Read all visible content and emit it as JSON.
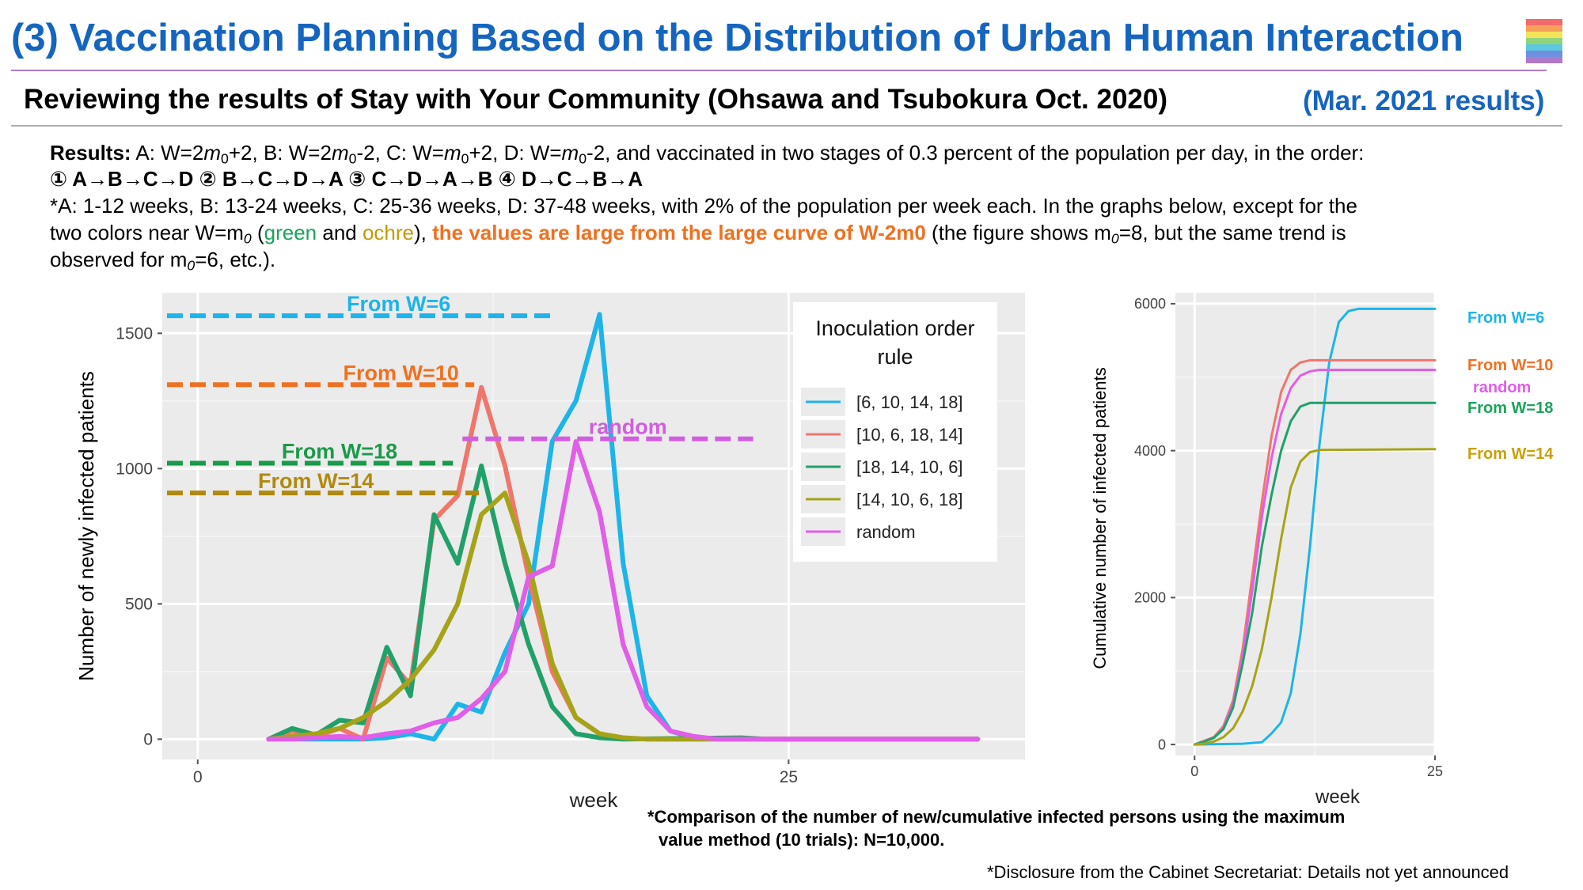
{
  "header": {
    "title": "(3) Vaccination Planning Based on the Distribution of Urban Human Interaction",
    "subtitle": "Reviewing the results of Stay with Your Community (Ohsawa and Tsubokura Oct. 2020)",
    "date": "(Mar. 2021 results)",
    "rainbow_colors": [
      "#f26b6b",
      "#f5a05a",
      "#f2e35a",
      "#8fd47a",
      "#5ec8e0",
      "#6f8fe0",
      "#b07acb"
    ]
  },
  "text": {
    "results_label": "Results:",
    "results_body_1": " A: W=2",
    "results_body_2": "+2, B: W=2",
    "results_body_3": "-2, C: W=",
    "results_body_4": "+2, D: W=",
    "results_body_5": "-2, and vaccinated in two stages of 0.3 percent of the population per day, in the order:",
    "m": "m",
    "zero": "0",
    "orders": "① A→B→C→D  ② B→C→D→A  ③ C→D→A→B  ④ D→C→B→A",
    "schedule_line": "*A: 1-12 weeks, B: 13-24 weeks, C: 25-36 weeks, D: 37-48 weeks, with 2% of the population per week each. In the graphs below, except for the",
    "line4_a": "two colors near W=m",
    "line4_b": " (",
    "green_word": "green",
    "and_word": " and ",
    "ochre_word": "ochre",
    "line4_c": "), ",
    "highlight": "the values are large from the large curve of W-2m0",
    "line4_d": " (the figure shows m",
    "line4_e": "=8, but the same trend is",
    "line5_a": "observed for m",
    "line5_b": "=6, etc.).",
    "footnote_1": "*Comparison of the number of new/cumulative infected persons using the maximum",
    "footnote_2": "value method (10 trials): N=10,000.",
    "footnote_3": "*Disclosure from the Cabinet Secretariat: Details not yet announced"
  },
  "chart_data": [
    {
      "type": "line",
      "xlabel": "week",
      "ylabel": "Number of newly infected patients",
      "xlim": [
        -1.5,
        35
      ],
      "ylim": [
        -75,
        1650
      ],
      "x_ticks": [
        0,
        25
      ],
      "y_ticks": [
        0,
        500,
        1000,
        1500
      ],
      "grid": true,
      "legend": {
        "title": "Inoculation order rule",
        "placement": "top-right",
        "entries": [
          "[6, 10, 14, 18]",
          "[10, 6, 18, 14]",
          "[18, 14, 10, 6]",
          "[14, 10, 6, 18]",
          "random"
        ]
      },
      "series": [
        {
          "name": "[6, 10, 14, 18]",
          "color": "#1eb4ea",
          "points": [
            [
              3,
              0
            ],
            [
              4,
              0
            ],
            [
              5,
              0
            ],
            [
              6,
              0
            ],
            [
              7,
              0
            ],
            [
              8,
              5
            ],
            [
              9,
              20
            ],
            [
              10,
              0
            ],
            [
              11,
              130
            ],
            [
              12,
              100
            ],
            [
              13,
              320
            ],
            [
              14,
              500
            ],
            [
              15,
              1100
            ],
            [
              16,
              1250
            ],
            [
              17,
              1570
            ],
            [
              18,
              650
            ],
            [
              19,
              160
            ],
            [
              20,
              30
            ],
            [
              21,
              5
            ],
            [
              22,
              0
            ],
            [
              33,
              0
            ]
          ]
        },
        {
          "name": "[10, 6, 18, 14]",
          "color": "#f0766c",
          "points": [
            [
              3,
              0
            ],
            [
              4,
              30
            ],
            [
              5,
              10
            ],
            [
              6,
              40
            ],
            [
              7,
              0
            ],
            [
              8,
              300
            ],
            [
              9,
              200
            ],
            [
              10,
              810
            ],
            [
              11,
              900
            ],
            [
              12,
              1300
            ],
            [
              13,
              1010
            ],
            [
              14,
              600
            ],
            [
              15,
              250
            ],
            [
              16,
              80
            ],
            [
              17,
              20
            ],
            [
              18,
              5
            ],
            [
              19,
              0
            ],
            [
              33,
              0
            ]
          ]
        },
        {
          "name": "[18, 14, 10, 6]",
          "color": "#22a06a",
          "points": [
            [
              3,
              0
            ],
            [
              4,
              40
            ],
            [
              5,
              15
            ],
            [
              6,
              70
            ],
            [
              7,
              60
            ],
            [
              8,
              340
            ],
            [
              9,
              160
            ],
            [
              10,
              830
            ],
            [
              11,
              650
            ],
            [
              12,
              1010
            ],
            [
              13,
              650
            ],
            [
              14,
              350
            ],
            [
              15,
              120
            ],
            [
              16,
              20
            ],
            [
              17,
              5
            ],
            [
              18,
              0
            ],
            [
              23,
              5
            ],
            [
              24,
              0
            ],
            [
              33,
              0
            ]
          ]
        },
        {
          "name": "[14, 10, 6, 18]",
          "color": "#a6a319",
          "points": [
            [
              3,
              0
            ],
            [
              4,
              10
            ],
            [
              5,
              20
            ],
            [
              6,
              40
            ],
            [
              7,
              80
            ],
            [
              8,
              140
            ],
            [
              9,
              220
            ],
            [
              10,
              330
            ],
            [
              11,
              500
            ],
            [
              12,
              830
            ],
            [
              13,
              910
            ],
            [
              14,
              650
            ],
            [
              15,
              280
            ],
            [
              16,
              80
            ],
            [
              17,
              20
            ],
            [
              18,
              5
            ],
            [
              19,
              0
            ],
            [
              33,
              0
            ]
          ]
        },
        {
          "name": "random",
          "color": "#e05ee8",
          "points": [
            [
              3,
              0
            ],
            [
              4,
              0
            ],
            [
              5,
              5
            ],
            [
              6,
              10
            ],
            [
              7,
              5
            ],
            [
              8,
              20
            ],
            [
              9,
              30
            ],
            [
              10,
              60
            ],
            [
              11,
              80
            ],
            [
              12,
              150
            ],
            [
              13,
              250
            ],
            [
              14,
              600
            ],
            [
              15,
              640
            ],
            [
              16,
              1100
            ],
            [
              17,
              840
            ],
            [
              18,
              350
            ],
            [
              19,
              120
            ],
            [
              20,
              30
            ],
            [
              21,
              10
            ],
            [
              22,
              0
            ],
            [
              33,
              0
            ]
          ]
        }
      ],
      "annotations": [
        {
          "label": "From W=6",
          "y": 1565,
          "x_from": -1.3,
          "x_to": 15.0,
          "label_x": 8.5,
          "color": "#1eb4ea"
        },
        {
          "label": "From W=10",
          "y": 1310,
          "x_from": -1.3,
          "x_to": 11.7,
          "label_x": 8.6,
          "color": "#f07020"
        },
        {
          "label": "random",
          "y": 1110,
          "x_from": 11.2,
          "x_to": 23.5,
          "label_x": 18.2,
          "color": "#d15ee0"
        },
        {
          "label": "From W=18",
          "y": 1020,
          "x_from": -1.3,
          "x_to": 10.8,
          "label_x": 6.0,
          "color": "#1a9a4a"
        },
        {
          "label": "From W=14",
          "y": 910,
          "x_from": -1.3,
          "x_to": 11.9,
          "label_x": 5.0,
          "color": "#b08a10"
        }
      ]
    },
    {
      "type": "line",
      "xlabel": "week",
      "ylabel": "Cumulative number of infected patients",
      "xlim": [
        -2,
        25
      ],
      "ylim": [
        -150,
        6150
      ],
      "x_ticks": [
        0,
        25
      ],
      "y_ticks": [
        0,
        2000,
        4000,
        6000
      ],
      "grid": true,
      "series": [
        {
          "name": "From W=6",
          "color": "#1eb4ea",
          "points": [
            [
              0,
              0
            ],
            [
              5,
              10
            ],
            [
              7,
              30
            ],
            [
              8,
              150
            ],
            [
              9,
              300
            ],
            [
              10,
              700
            ],
            [
              11,
              1500
            ],
            [
              12,
              2700
            ],
            [
              13,
              4100
            ],
            [
              14,
              5200
            ],
            [
              15,
              5750
            ],
            [
              16,
              5900
            ],
            [
              17,
              5930
            ],
            [
              25,
              5930
            ]
          ]
        },
        {
          "name": "From W=10",
          "color": "#f0766c",
          "points": [
            [
              0,
              0
            ],
            [
              1,
              50
            ],
            [
              2,
              100
            ],
            [
              3,
              250
            ],
            [
              4,
              600
            ],
            [
              5,
              1300
            ],
            [
              6,
              2300
            ],
            [
              7,
              3300
            ],
            [
              8,
              4200
            ],
            [
              9,
              4800
            ],
            [
              10,
              5100
            ],
            [
              11,
              5200
            ],
            [
              12,
              5230
            ],
            [
              25,
              5230
            ]
          ]
        },
        {
          "name": "random",
          "color": "#e05ee8",
          "points": [
            [
              0,
              0
            ],
            [
              1,
              40
            ],
            [
              2,
              90
            ],
            [
              3,
              230
            ],
            [
              4,
              550
            ],
            [
              5,
              1200
            ],
            [
              6,
              2100
            ],
            [
              7,
              3100
            ],
            [
              8,
              3900
            ],
            [
              9,
              4500
            ],
            [
              10,
              4850
            ],
            [
              11,
              5020
            ],
            [
              12,
              5080
            ],
            [
              13,
              5100
            ],
            [
              25,
              5100
            ]
          ]
        },
        {
          "name": "From W=18",
          "color": "#22a06a",
          "points": [
            [
              0,
              0
            ],
            [
              1,
              40
            ],
            [
              2,
              90
            ],
            [
              3,
              210
            ],
            [
              4,
              500
            ],
            [
              5,
              1100
            ],
            [
              6,
              1800
            ],
            [
              7,
              2700
            ],
            [
              8,
              3400
            ],
            [
              9,
              4000
            ],
            [
              10,
              4400
            ],
            [
              11,
              4600
            ],
            [
              12,
              4650
            ],
            [
              25,
              4650
            ]
          ]
        },
        {
          "name": "From W=14",
          "color": "#a6a319",
          "points": [
            [
              0,
              0
            ],
            [
              1,
              10
            ],
            [
              2,
              40
            ],
            [
              3,
              100
            ],
            [
              4,
              220
            ],
            [
              5,
              450
            ],
            [
              6,
              800
            ],
            [
              7,
              1300
            ],
            [
              8,
              2000
            ],
            [
              9,
              2800
            ],
            [
              10,
              3500
            ],
            [
              11,
              3850
            ],
            [
              12,
              3980
            ],
            [
              13,
              4010
            ],
            [
              25,
              4020
            ]
          ]
        }
      ],
      "end_labels": [
        {
          "label": "From W=6",
          "color": "#1eb4ea"
        },
        {
          "label": "From W=10",
          "color": "#f07020"
        },
        {
          "label": "random",
          "color": "#e05ee8"
        },
        {
          "label": "From W=18",
          "color": "#1aa35a"
        },
        {
          "label": "From W=14",
          "color": "#c9a005"
        }
      ]
    }
  ]
}
